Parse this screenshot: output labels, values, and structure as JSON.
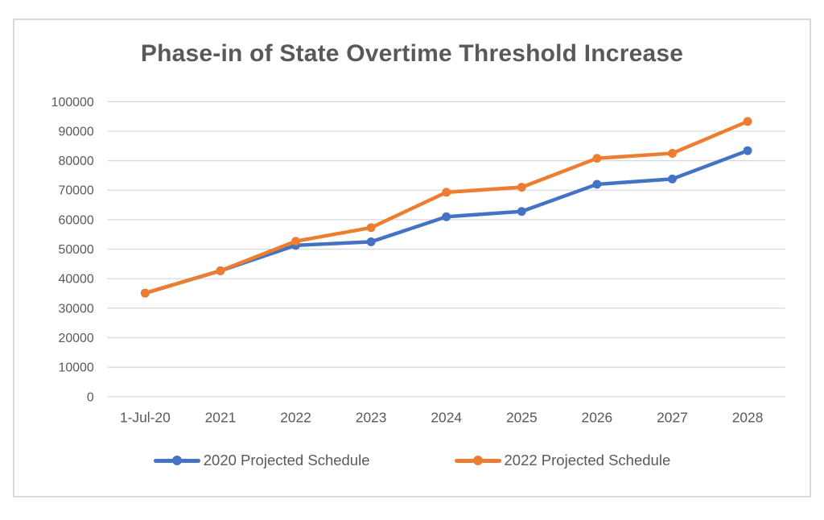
{
  "chart_data": {
    "type": "line",
    "title": "Phase-in of State Overtime Threshold Increase",
    "categories": [
      "1-Jul-20",
      "2021",
      "2022",
      "2023",
      "2024",
      "2025",
      "2026",
      "2027",
      "2028"
    ],
    "series": [
      {
        "name": "2020 Projected Schedule",
        "color": "#4472C4",
        "marker": "circle",
        "values": [
          35100,
          42700,
          51300,
          52500,
          61000,
          62800,
          72000,
          73800,
          83400
        ]
      },
      {
        "name": "2022 Projected Schedule",
        "color": "#ED7D31",
        "marker": "circle",
        "values": [
          35100,
          42700,
          52700,
          57300,
          69300,
          71000,
          80800,
          82500,
          93300
        ]
      }
    ],
    "xlabel": "",
    "ylabel": "",
    "ylim": [
      0,
      100000
    ],
    "ytick_step": 10000,
    "ytick_labels": [
      "0",
      "10000",
      "20000",
      "30000",
      "40000",
      "50000",
      "60000",
      "70000",
      "80000",
      "90000",
      "100000"
    ],
    "grid": true,
    "legend_position": "bottom"
  },
  "colors": {
    "text": "#595959",
    "gridline": "#D9D9D9",
    "frame_border": "#D9D9D9",
    "background": "#FFFFFF"
  }
}
